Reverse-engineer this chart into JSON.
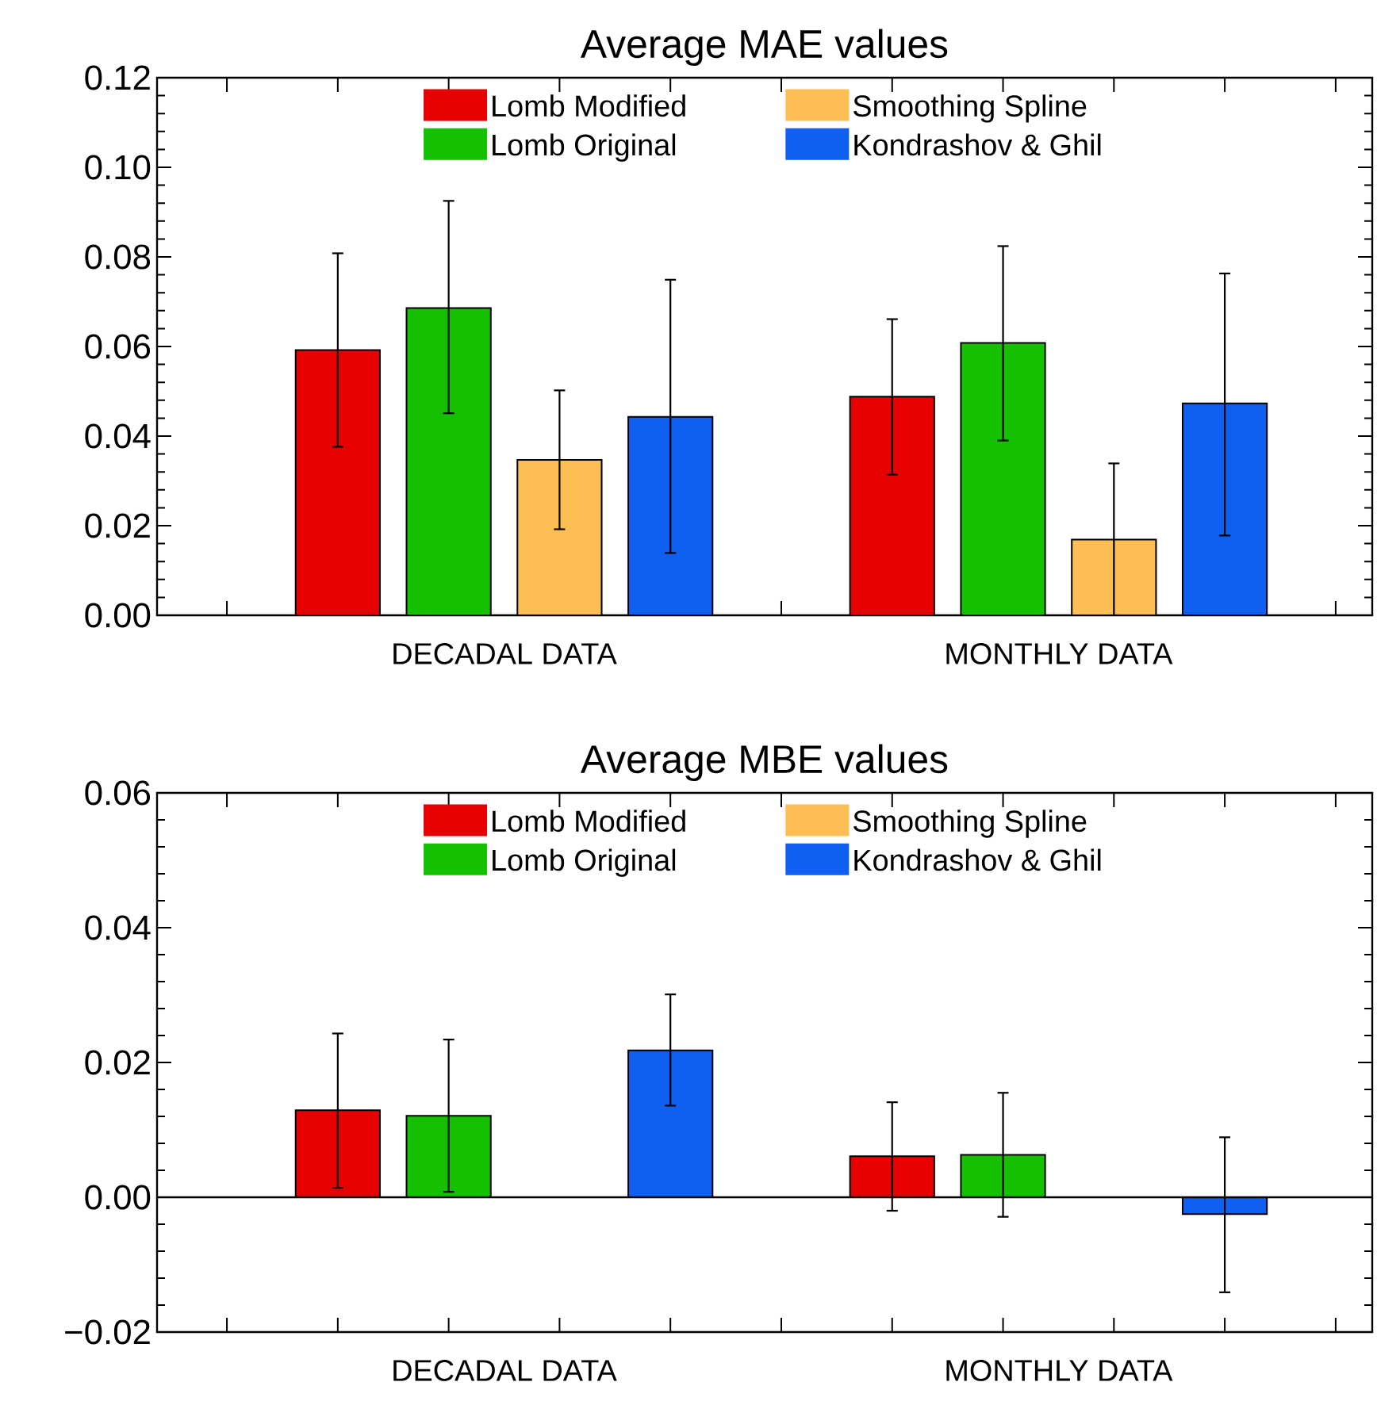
{
  "chart_data": [
    {
      "type": "bar",
      "title": "Average MAE values",
      "categories": [
        "DECADAL DATA",
        "MONTHLY DATA"
      ],
      "series": [
        {
          "name": "Lomb Modified",
          "color": "#e60000",
          "values": [
            0.0592,
            0.0488
          ],
          "errors": [
            [
              0.0376,
              0.0808
            ],
            [
              0.0314,
              0.0661
            ]
          ]
        },
        {
          "name": "Lomb Original",
          "color": "#14c000",
          "values": [
            0.0686,
            0.0608
          ],
          "errors": [
            [
              0.0451,
              0.0925
            ],
            [
              0.039,
              0.0824
            ]
          ]
        },
        {
          "name": "Smoothing Spline",
          "color": "#fdbf55",
          "values": [
            0.0347,
            0.0169
          ],
          "errors": [
            [
              0.0192,
              0.0502
            ],
            [
              0.0,
              0.0339
            ]
          ]
        },
        {
          "name": "Kondrashov & Ghil",
          "color": "#0f5ff0",
          "values": [
            0.0443,
            0.0473
          ],
          "errors": [
            [
              0.0139,
              0.0749
            ],
            [
              0.0178,
              0.0763
            ]
          ]
        }
      ],
      "ylim": [
        0,
        0.12
      ],
      "yticks": [
        {
          "value": 0,
          "label": "0.00"
        },
        {
          "value": 0.02,
          "label": "0.02"
        },
        {
          "value": 0.04,
          "label": "0.04"
        },
        {
          "value": 0.06,
          "label": "0.06"
        },
        {
          "value": 0.08,
          "label": "0.08"
        },
        {
          "value": 0.1,
          "label": "0.10"
        },
        {
          "value": 0.12,
          "label": "0.12"
        }
      ],
      "legend": "top"
    },
    {
      "type": "bar",
      "title": "Average MBE values",
      "categories": [
        "DECADAL DATA",
        "MONTHLY DATA"
      ],
      "series": [
        {
          "name": "Lomb Modified",
          "color": "#e60000",
          "values": [
            0.0129,
            0.0061
          ],
          "errors": [
            [
              0.0014,
              0.0243
            ],
            [
              -0.002,
              0.0141
            ]
          ]
        },
        {
          "name": "Lomb Original",
          "color": "#14c000",
          "values": [
            0.0121,
            0.0063
          ],
          "errors": [
            [
              0.0008,
              0.0234
            ],
            [
              -0.0029,
              0.0155
            ]
          ]
        },
        {
          "name": "Smoothing Spline",
          "color": "#fdbf55",
          "values": [
            0,
            0
          ]
        },
        {
          "name": "Kondrashov & Ghil",
          "color": "#0f5ff0",
          "values": [
            0.0218,
            -0.0025
          ],
          "errors": [
            [
              0.0136,
              0.0301
            ],
            [
              -0.0141,
              0.0089
            ]
          ]
        }
      ],
      "ylim": [
        -0.02,
        0.06
      ],
      "yticks": [
        {
          "value": -0.02,
          "label": "−0.02"
        },
        {
          "value": 0,
          "label": "0.00"
        },
        {
          "value": 0.02,
          "label": "0.02"
        },
        {
          "value": 0.04,
          "label": "0.04"
        },
        {
          "value": 0.06,
          "label": "0.06"
        }
      ],
      "legend": "top",
      "ref_lines": [
        {
          "axis": "y",
          "value": 0
        }
      ]
    }
  ]
}
